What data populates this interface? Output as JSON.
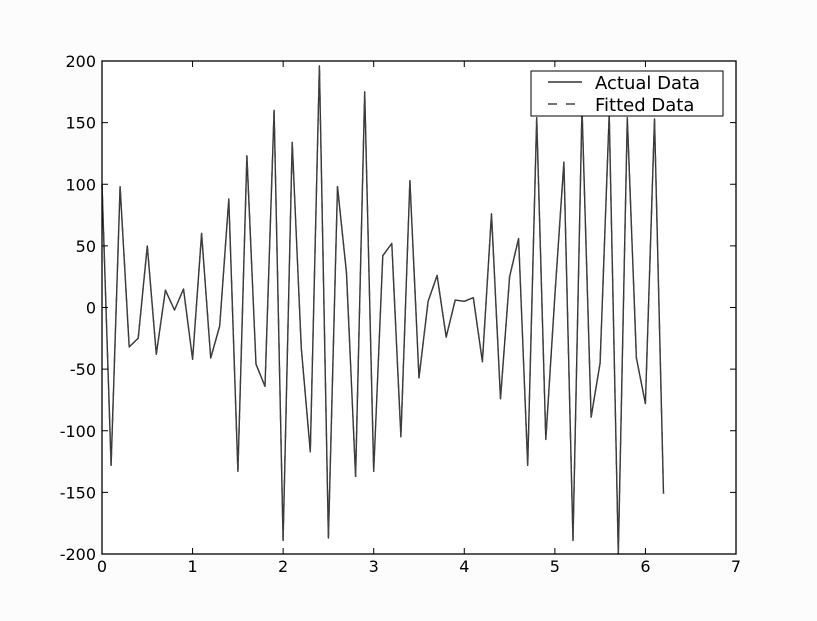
{
  "chart_data": {
    "type": "line",
    "title": "",
    "xlabel": "",
    "ylabel": "",
    "xlim": [
      0,
      7
    ],
    "ylim": [
      -200,
      200
    ],
    "xticks": [
      "0",
      "1",
      "2",
      "3",
      "4",
      "5",
      "6",
      "7"
    ],
    "yticks": [
      "200",
      "150",
      "100",
      "50",
      "0",
      "-50",
      "-100",
      "-150",
      "-200"
    ],
    "grid": false,
    "legend": {
      "location": "top-right",
      "entries": [
        {
          "label": "Actual Data",
          "style": "solid"
        },
        {
          "label": "Fitted Data",
          "style": "dashed"
        }
      ]
    },
    "series": [
      {
        "name": "Actual Data",
        "style": "solid",
        "color": "#333333",
        "x": [
          0.0,
          0.1,
          0.2,
          0.3,
          0.4,
          0.5,
          0.6,
          0.7,
          0.8,
          0.9,
          1.0,
          1.1,
          1.2,
          1.3,
          1.4,
          1.5,
          1.6,
          1.7,
          1.8,
          1.9,
          2.0,
          2.1,
          2.2,
          2.3,
          2.4,
          2.5,
          2.6,
          2.7,
          2.8,
          2.9,
          3.0,
          3.1,
          3.2,
          3.3,
          3.4,
          3.5,
          3.6,
          3.7,
          3.8,
          3.9,
          4.0,
          4.1,
          4.2,
          4.3,
          4.4,
          4.5,
          4.6,
          4.7,
          4.8,
          4.9,
          5.0,
          5.1,
          5.2,
          5.3,
          5.4,
          5.5,
          5.6,
          5.7,
          5.8,
          5.9,
          6.0,
          6.1,
          6.2
        ],
        "values": [
          100,
          -128,
          98,
          -32,
          -25,
          50,
          -38,
          14,
          -2,
          15,
          -42,
          60,
          -41,
          -15,
          88,
          -133,
          123,
          -46,
          -64,
          160,
          -189,
          134,
          -33,
          -117,
          196,
          -187,
          98,
          28,
          -137,
          175,
          -133,
          42,
          52,
          -105,
          103,
          -57,
          5,
          26,
          -24,
          6,
          5,
          8,
          -44,
          76,
          -74,
          25,
          56,
          -128,
          154,
          -107,
          10,
          118,
          -189,
          162,
          -89,
          -45,
          157,
          -200,
          154,
          -41,
          -78,
          153,
          -151
        ]
      },
      {
        "name": "Fitted Data",
        "style": "dashed",
        "color": "#444444",
        "x": [
          0.0,
          0.1,
          0.2,
          0.3,
          0.4,
          0.5,
          0.6,
          0.7,
          0.8,
          0.9,
          1.0,
          1.1,
          1.2,
          1.3,
          1.4,
          1.5,
          1.6,
          1.7,
          1.8,
          1.9,
          2.0,
          2.1,
          2.2,
          2.3,
          2.4,
          2.5,
          2.6,
          2.7,
          2.8,
          2.9,
          3.0,
          3.1,
          3.2,
          3.3,
          3.4,
          3.5,
          3.6,
          3.7,
          3.8,
          3.9,
          4.0,
          4.1,
          4.2,
          4.3,
          4.4,
          4.5,
          4.6,
          4.7,
          4.8,
          4.9,
          5.0,
          5.1,
          5.2,
          5.3,
          5.4,
          5.5,
          5.6,
          5.7,
          5.8,
          5.9,
          6.0,
          6.1,
          6.2
        ],
        "values": [
          100,
          -128,
          98,
          -32,
          -25,
          50,
          -38,
          14,
          -2,
          15,
          -42,
          60,
          -41,
          -15,
          88,
          -133,
          123,
          -46,
          -64,
          160,
          -189,
          134,
          -33,
          -117,
          196,
          -187,
          98,
          28,
          -137,
          175,
          -133,
          42,
          52,
          -105,
          103,
          -57,
          5,
          26,
          -24,
          6,
          5,
          8,
          -44,
          76,
          -74,
          25,
          56,
          -128,
          154,
          -107,
          10,
          118,
          -189,
          162,
          -89,
          -45,
          157,
          -200,
          154,
          -41,
          -78,
          153,
          -151
        ]
      }
    ]
  }
}
